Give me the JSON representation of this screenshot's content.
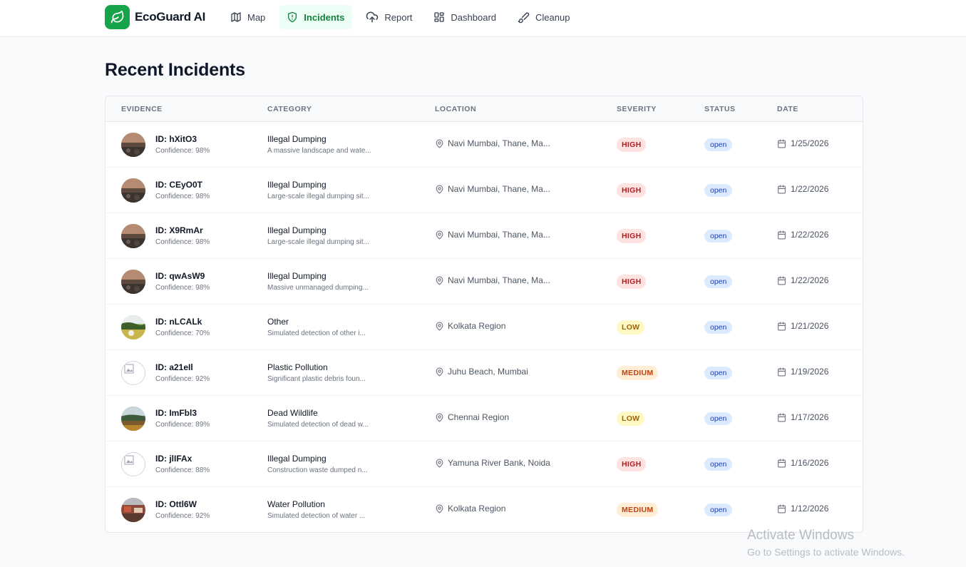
{
  "app": {
    "name": "EcoGuard AI",
    "logo_icon": "leaf-icon",
    "accent": "#16a34a"
  },
  "nav": [
    {
      "label": "Map",
      "icon": "map-icon",
      "active": false
    },
    {
      "label": "Incidents",
      "icon": "shield-alert-icon",
      "active": true
    },
    {
      "label": "Report",
      "icon": "upload-cloud-icon",
      "active": false
    },
    {
      "label": "Dashboard",
      "icon": "dashboard-grid-icon",
      "active": false
    },
    {
      "label": "Cleanup",
      "icon": "brush-icon",
      "active": false
    }
  ],
  "page": {
    "title": "Recent Incidents"
  },
  "table": {
    "columns": [
      "EVIDENCE",
      "CATEGORY",
      "LOCATION",
      "SEVERITY",
      "STATUS",
      "DATE"
    ],
    "rows": [
      {
        "id": "ID: hXitO3",
        "confidence": "Confidence: 98%",
        "category": "Illegal Dumping",
        "description": "A massive landscape and wate...",
        "location": "Navi Mumbai, Thane, Ma...",
        "severity": "HIGH",
        "status": "open",
        "date": "1/25/2026",
        "thumb": "dump"
      },
      {
        "id": "ID: CEyO0T",
        "confidence": "Confidence: 98%",
        "category": "Illegal Dumping",
        "description": "Large-scale illegal dumping sit...",
        "location": "Navi Mumbai, Thane, Ma...",
        "severity": "HIGH",
        "status": "open",
        "date": "1/22/2026",
        "thumb": "dump"
      },
      {
        "id": "ID: X9RmAr",
        "confidence": "Confidence: 98%",
        "category": "Illegal Dumping",
        "description": "Large-scale illegal dumping sit...",
        "location": "Navi Mumbai, Thane, Ma...",
        "severity": "HIGH",
        "status": "open",
        "date": "1/22/2026",
        "thumb": "dump"
      },
      {
        "id": "ID: qwAsW9",
        "confidence": "Confidence: 98%",
        "category": "Illegal Dumping",
        "description": "Massive unmanaged dumping...",
        "location": "Navi Mumbai, Thane, Ma...",
        "severity": "HIGH",
        "status": "open",
        "date": "1/22/2026",
        "thumb": "dump"
      },
      {
        "id": "ID: nLCALk",
        "confidence": "Confidence: 70%",
        "category": "Other",
        "description": "Simulated detection of other i...",
        "location": "Kolkata Region",
        "severity": "LOW",
        "status": "open",
        "date": "1/21/2026",
        "thumb": "field"
      },
      {
        "id": "ID: a21eIl",
        "confidence": "Confidence: 92%",
        "category": "Plastic Pollution",
        "description": "Significant plastic debris foun...",
        "location": "Juhu Beach, Mumbai",
        "severity": "MEDIUM",
        "status": "open",
        "date": "1/19/2026",
        "thumb": "broken"
      },
      {
        "id": "ID: ImFbl3",
        "confidence": "Confidence: 89%",
        "category": "Dead Wildlife",
        "description": "Simulated detection of dead w...",
        "location": "Chennai Region",
        "severity": "LOW",
        "status": "open",
        "date": "1/17/2026",
        "thumb": "landscape"
      },
      {
        "id": "ID: jlIFAx",
        "confidence": "Confidence: 88%",
        "category": "Illegal Dumping",
        "description": "Construction waste dumped n...",
        "location": "Yamuna River Bank, Noida",
        "severity": "HIGH",
        "status": "open",
        "date": "1/16/2026",
        "thumb": "broken"
      },
      {
        "id": "ID: Ottl6W",
        "confidence": "Confidence: 92%",
        "category": "Water Pollution",
        "description": "Simulated detection of water ...",
        "location": "Kolkata Region",
        "severity": "MEDIUM",
        "status": "open",
        "date": "1/12/2026",
        "thumb": "water"
      }
    ]
  },
  "watermark": {
    "line1": "Activate Windows",
    "line2": "Go to Settings to activate Windows."
  }
}
